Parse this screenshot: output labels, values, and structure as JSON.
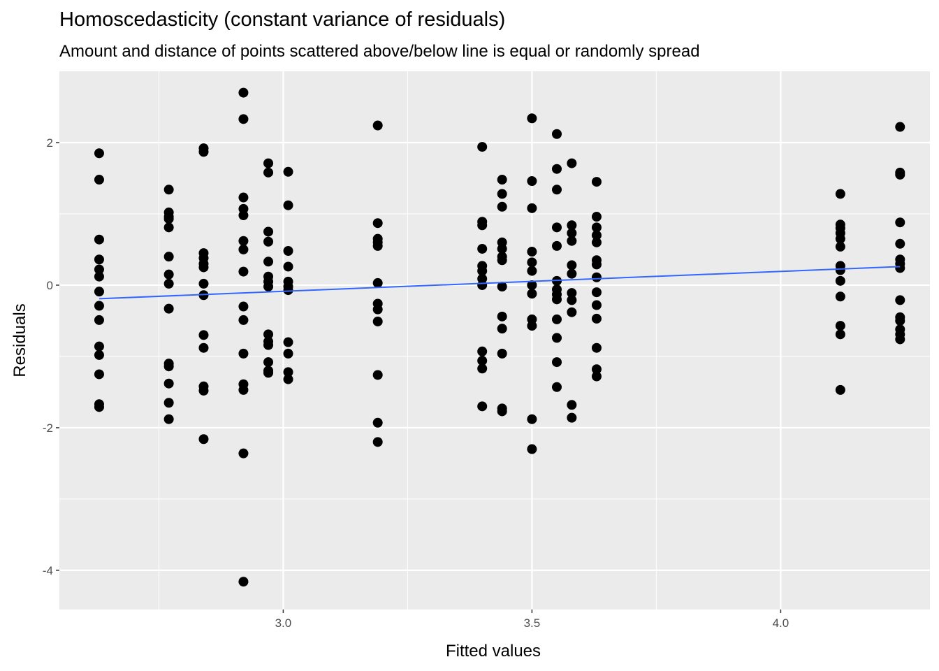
{
  "chart_data": {
    "type": "scatter",
    "title": "Homoscedasticity (constant variance of residuals)",
    "subtitle": "Amount and distance of points scattered above/below line is equal or randomly spread",
    "xlabel": "Fitted values",
    "ylabel": "Residuals",
    "xlim": [
      2.55,
      4.3
    ],
    "ylim": [
      -4.55,
      3.0
    ],
    "x_ticks": [
      3.0,
      3.5,
      4.0
    ],
    "x_tick_labels": [
      "3.0",
      "3.5",
      "4.0"
    ],
    "y_ticks": [
      2,
      0,
      -2,
      -4
    ],
    "y_tick_labels": [
      "2",
      "0",
      "-2",
      "-4"
    ],
    "grid": true,
    "background": "#ebebeb",
    "point_color": "#000000",
    "line_color": "#3366ff",
    "fit_line": {
      "x": [
        2.63,
        4.24
      ],
      "y": [
        -0.19,
        0.26
      ]
    },
    "points": [
      {
        "x": 2.63,
        "y": 1.85
      },
      {
        "x": 2.63,
        "y": 1.48
      },
      {
        "x": 2.63,
        "y": 0.64
      },
      {
        "x": 2.63,
        "y": 0.36
      },
      {
        "x": 2.63,
        "y": 0.22
      },
      {
        "x": 2.63,
        "y": 0.12
      },
      {
        "x": 2.63,
        "y": -0.09
      },
      {
        "x": 2.63,
        "y": -0.29
      },
      {
        "x": 2.63,
        "y": -0.49
      },
      {
        "x": 2.63,
        "y": -0.86
      },
      {
        "x": 2.63,
        "y": -0.98
      },
      {
        "x": 2.63,
        "y": -1.25
      },
      {
        "x": 2.63,
        "y": -1.67
      },
      {
        "x": 2.63,
        "y": -1.71
      },
      {
        "x": 2.77,
        "y": 1.34
      },
      {
        "x": 2.77,
        "y": 1.02
      },
      {
        "x": 2.77,
        "y": 0.96
      },
      {
        "x": 2.77,
        "y": 0.93
      },
      {
        "x": 2.77,
        "y": 0.81
      },
      {
        "x": 2.77,
        "y": 0.4
      },
      {
        "x": 2.77,
        "y": 0.15
      },
      {
        "x": 2.77,
        "y": 0.02
      },
      {
        "x": 2.77,
        "y": -0.33
      },
      {
        "x": 2.77,
        "y": -1.1
      },
      {
        "x": 2.77,
        "y": -1.14
      },
      {
        "x": 2.77,
        "y": -1.38
      },
      {
        "x": 2.77,
        "y": -1.65
      },
      {
        "x": 2.77,
        "y": -1.88
      },
      {
        "x": 2.84,
        "y": 1.92
      },
      {
        "x": 2.84,
        "y": 1.87
      },
      {
        "x": 2.84,
        "y": 0.45
      },
      {
        "x": 2.84,
        "y": 0.38
      },
      {
        "x": 2.84,
        "y": 0.3
      },
      {
        "x": 2.84,
        "y": 0.25
      },
      {
        "x": 2.84,
        "y": 0.02
      },
      {
        "x": 2.84,
        "y": -0.14
      },
      {
        "x": 2.84,
        "y": -0.7
      },
      {
        "x": 2.84,
        "y": -0.88
      },
      {
        "x": 2.84,
        "y": -1.42
      },
      {
        "x": 2.84,
        "y": -1.48
      },
      {
        "x": 2.84,
        "y": -2.16
      },
      {
        "x": 2.92,
        "y": 2.7
      },
      {
        "x": 2.92,
        "y": 2.33
      },
      {
        "x": 2.92,
        "y": 1.23
      },
      {
        "x": 2.92,
        "y": 1.07
      },
      {
        "x": 2.92,
        "y": 0.98
      },
      {
        "x": 2.92,
        "y": 0.62
      },
      {
        "x": 2.92,
        "y": 0.5
      },
      {
        "x": 2.92,
        "y": 0.19
      },
      {
        "x": 2.92,
        "y": -0.3
      },
      {
        "x": 2.92,
        "y": -0.49
      },
      {
        "x": 2.92,
        "y": -0.96
      },
      {
        "x": 2.92,
        "y": -1.39
      },
      {
        "x": 2.92,
        "y": -1.47
      },
      {
        "x": 2.92,
        "y": -2.36
      },
      {
        "x": 2.92,
        "y": -4.16
      },
      {
        "x": 2.97,
        "y": 1.71
      },
      {
        "x": 2.97,
        "y": 1.58
      },
      {
        "x": 2.97,
        "y": 0.75
      },
      {
        "x": 2.97,
        "y": 0.61
      },
      {
        "x": 2.97,
        "y": 0.33
      },
      {
        "x": 2.97,
        "y": 0.12
      },
      {
        "x": 2.97,
        "y": 0.05
      },
      {
        "x": 2.97,
        "y": -0.02
      },
      {
        "x": 2.97,
        "y": -0.69
      },
      {
        "x": 2.97,
        "y": -0.79
      },
      {
        "x": 2.97,
        "y": -0.84
      },
      {
        "x": 2.97,
        "y": -1.08
      },
      {
        "x": 2.97,
        "y": -1.2
      },
      {
        "x": 2.97,
        "y": -1.23
      },
      {
        "x": 3.01,
        "y": 1.59
      },
      {
        "x": 3.01,
        "y": 1.12
      },
      {
        "x": 3.01,
        "y": 0.48
      },
      {
        "x": 3.01,
        "y": 0.26
      },
      {
        "x": 3.01,
        "y": 0.05
      },
      {
        "x": 3.01,
        "y": -0.02
      },
      {
        "x": 3.01,
        "y": -0.07
      },
      {
        "x": 3.01,
        "y": -0.8
      },
      {
        "x": 3.01,
        "y": -0.96
      },
      {
        "x": 3.01,
        "y": -1.22
      },
      {
        "x": 3.01,
        "y": -1.32
      },
      {
        "x": 3.19,
        "y": 2.24
      },
      {
        "x": 3.19,
        "y": 0.87
      },
      {
        "x": 3.19,
        "y": 0.65
      },
      {
        "x": 3.19,
        "y": 0.6
      },
      {
        "x": 3.19,
        "y": 0.55
      },
      {
        "x": 3.19,
        "y": 0.03
      },
      {
        "x": 3.19,
        "y": -0.26
      },
      {
        "x": 3.19,
        "y": -0.34
      },
      {
        "x": 3.19,
        "y": -0.51
      },
      {
        "x": 3.19,
        "y": -1.26
      },
      {
        "x": 3.19,
        "y": -1.93
      },
      {
        "x": 3.19,
        "y": -2.2
      },
      {
        "x": 3.4,
        "y": 1.94
      },
      {
        "x": 3.4,
        "y": 0.89
      },
      {
        "x": 3.4,
        "y": 0.84
      },
      {
        "x": 3.4,
        "y": 0.51
      },
      {
        "x": 3.4,
        "y": 0.27
      },
      {
        "x": 3.4,
        "y": 0.2
      },
      {
        "x": 3.4,
        "y": 0.09
      },
      {
        "x": 3.4,
        "y": 0.0
      },
      {
        "x": 3.4,
        "y": -0.93
      },
      {
        "x": 3.4,
        "y": -1.06
      },
      {
        "x": 3.4,
        "y": -1.17
      },
      {
        "x": 3.4,
        "y": -1.7
      },
      {
        "x": 3.44,
        "y": 1.48
      },
      {
        "x": 3.44,
        "y": 1.28
      },
      {
        "x": 3.44,
        "y": 1.1
      },
      {
        "x": 3.44,
        "y": 0.6
      },
      {
        "x": 3.44,
        "y": 0.51
      },
      {
        "x": 3.44,
        "y": 0.4
      },
      {
        "x": 3.44,
        "y": 0.35
      },
      {
        "x": 3.44,
        "y": -0.02
      },
      {
        "x": 3.44,
        "y": -0.44
      },
      {
        "x": 3.44,
        "y": -0.61
      },
      {
        "x": 3.44,
        "y": -0.96
      },
      {
        "x": 3.44,
        "y": -1.73
      },
      {
        "x": 3.44,
        "y": -1.77
      },
      {
        "x": 3.5,
        "y": 2.34
      },
      {
        "x": 3.5,
        "y": 1.46
      },
      {
        "x": 3.5,
        "y": 1.08
      },
      {
        "x": 3.5,
        "y": 0.47
      },
      {
        "x": 3.5,
        "y": 0.32
      },
      {
        "x": 3.5,
        "y": 0.2
      },
      {
        "x": 3.5,
        "y": 0.0
      },
      {
        "x": 3.5,
        "y": -0.12
      },
      {
        "x": 3.5,
        "y": -0.48
      },
      {
        "x": 3.5,
        "y": -0.57
      },
      {
        "x": 3.5,
        "y": -1.88
      },
      {
        "x": 3.5,
        "y": -2.3
      },
      {
        "x": 3.55,
        "y": 2.12
      },
      {
        "x": 3.55,
        "y": 1.63
      },
      {
        "x": 3.55,
        "y": 1.34
      },
      {
        "x": 3.55,
        "y": 0.81
      },
      {
        "x": 3.55,
        "y": 0.55
      },
      {
        "x": 3.55,
        "y": 0.06
      },
      {
        "x": 3.55,
        "y": -0.06
      },
      {
        "x": 3.55,
        "y": -0.13
      },
      {
        "x": 3.55,
        "y": -0.2
      },
      {
        "x": 3.55,
        "y": -0.48
      },
      {
        "x": 3.55,
        "y": -0.74
      },
      {
        "x": 3.55,
        "y": -1.08
      },
      {
        "x": 3.55,
        "y": -1.43
      },
      {
        "x": 3.58,
        "y": 1.71
      },
      {
        "x": 3.58,
        "y": 0.84
      },
      {
        "x": 3.58,
        "y": 0.73
      },
      {
        "x": 3.58,
        "y": 0.62
      },
      {
        "x": 3.58,
        "y": 0.28
      },
      {
        "x": 3.58,
        "y": 0.16
      },
      {
        "x": 3.58,
        "y": -0.11
      },
      {
        "x": 3.58,
        "y": -0.21
      },
      {
        "x": 3.58,
        "y": -0.38
      },
      {
        "x": 3.58,
        "y": -1.68
      },
      {
        "x": 3.58,
        "y": -1.86
      },
      {
        "x": 3.63,
        "y": 1.45
      },
      {
        "x": 3.63,
        "y": 0.96
      },
      {
        "x": 3.63,
        "y": 0.81
      },
      {
        "x": 3.63,
        "y": 0.7
      },
      {
        "x": 3.63,
        "y": 0.6
      },
      {
        "x": 3.63,
        "y": 0.35
      },
      {
        "x": 3.63,
        "y": 0.29
      },
      {
        "x": 3.63,
        "y": 0.11
      },
      {
        "x": 3.63,
        "y": -0.1
      },
      {
        "x": 3.63,
        "y": -0.28
      },
      {
        "x": 3.63,
        "y": -0.47
      },
      {
        "x": 3.63,
        "y": -0.88
      },
      {
        "x": 3.63,
        "y": -1.18
      },
      {
        "x": 3.63,
        "y": -1.28
      },
      {
        "x": 4.12,
        "y": 1.28
      },
      {
        "x": 4.12,
        "y": 0.85
      },
      {
        "x": 4.12,
        "y": 0.8
      },
      {
        "x": 4.12,
        "y": 0.73
      },
      {
        "x": 4.12,
        "y": 0.65
      },
      {
        "x": 4.12,
        "y": 0.54
      },
      {
        "x": 4.12,
        "y": 0.27
      },
      {
        "x": 4.12,
        "y": 0.21
      },
      {
        "x": 4.12,
        "y": 0.06
      },
      {
        "x": 4.12,
        "y": -0.16
      },
      {
        "x": 4.12,
        "y": -0.57
      },
      {
        "x": 4.12,
        "y": -0.69
      },
      {
        "x": 4.12,
        "y": -1.47
      },
      {
        "x": 4.24,
        "y": 2.22
      },
      {
        "x": 4.24,
        "y": 1.58
      },
      {
        "x": 4.24,
        "y": 1.55
      },
      {
        "x": 4.24,
        "y": 0.88
      },
      {
        "x": 4.24,
        "y": 0.58
      },
      {
        "x": 4.24,
        "y": 0.36
      },
      {
        "x": 4.24,
        "y": 0.3
      },
      {
        "x": 4.24,
        "y": 0.24
      },
      {
        "x": 4.24,
        "y": -0.21
      },
      {
        "x": 4.24,
        "y": -0.45
      },
      {
        "x": 4.24,
        "y": -0.5
      },
      {
        "x": 4.24,
        "y": -0.62
      },
      {
        "x": 4.24,
        "y": -0.69
      },
      {
        "x": 4.24,
        "y": -0.76
      }
    ]
  }
}
